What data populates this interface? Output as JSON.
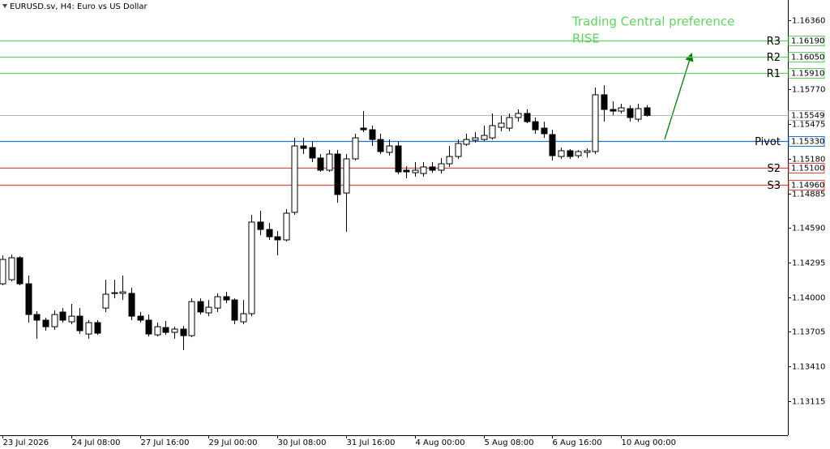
{
  "chart_data": {
    "type": "candlestick",
    "title": "EURUSD.sv, H4:  Euro vs US Dollar",
    "categories": [
      "23 Jul 2026",
      null,
      null,
      null,
      null,
      null,
      null,
      null,
      "24 Jul 08:00",
      null,
      null,
      null,
      null,
      null,
      null,
      null,
      "27 Jul 16:00",
      null,
      null,
      null,
      null,
      null,
      null,
      null,
      "29 Jul 00:00",
      null,
      null,
      null,
      null,
      null,
      null,
      null,
      "30 Jul 08:00",
      null,
      null,
      null,
      null,
      null,
      null,
      null,
      "31 Jul 16:00",
      null,
      null,
      null,
      null,
      null,
      null,
      null,
      "4 Aug 00:00",
      null,
      null,
      null,
      null,
      null,
      null,
      null,
      "5 Aug 08:00",
      null,
      null,
      null,
      null,
      null,
      null,
      null,
      "6 Aug 16:00",
      null,
      null,
      null,
      null,
      null,
      null,
      null,
      "10 Aug 00:00",
      null,
      null,
      null
    ],
    "open": [
      1.14114,
      1.14149,
      1.14336,
      1.14114,
      1.13852,
      1.13804,
      1.13748,
      1.13873,
      1.1379,
      1.13838,
      1.13686,
      1.13783,
      1.13907,
      1.14038,
      1.14032,
      1.14032,
      1.13838,
      1.13804,
      1.13679,
      1.13741,
      1.137,
      1.13728,
      1.13672,
      1.13962,
      1.13866,
      1.13907,
      1.14004,
      1.13976,
      1.1379,
      1.13859,
      1.1464,
      1.14577,
      1.14515,
      1.14488,
      1.14723,
      1.15289,
      1.15275,
      1.15186,
      1.15082,
      1.1522,
      1.14888,
      1.15179,
      1.15441,
      1.15427,
      1.15344,
      1.15234,
      1.15289,
      1.15082,
      1.15061,
      1.15054,
      1.1511,
      1.15082,
      1.15137,
      1.15199,
      1.15303,
      1.15338,
      1.15344,
      1.15358,
      1.15448,
      1.15441,
      1.15531,
      1.15566,
      1.15496,
      1.15441,
      1.15386,
      1.15199,
      1.15248,
      1.15206,
      1.15234,
      1.15241,
      1.15725,
      1.156,
      1.15586,
      1.15607,
      1.15517,
      1.15614
    ],
    "high": [
      1.14356,
      1.14363,
      1.14349,
      1.14184,
      1.1388,
      1.13824,
      1.13886,
      1.13907,
      1.13942,
      1.13907,
      1.13804,
      1.13804,
      1.14149,
      1.14149,
      1.14184,
      1.1408,
      1.13873,
      1.13852,
      1.13783,
      1.13797,
      1.13748,
      1.13755,
      1.1399,
      1.1399,
      1.13976,
      1.14032,
      1.14045,
      1.1399,
      1.13976,
      1.14702,
      1.14736,
      1.14633,
      1.14564,
      1.1475,
      1.15358,
      1.15358,
      1.15324,
      1.1522,
      1.15255,
      1.15255,
      1.1522,
      1.15393,
      1.15586,
      1.15462,
      1.15393,
      1.15344,
      1.15324,
      1.15116,
      1.15151,
      1.15151,
      1.15151,
      1.15186,
      1.15289,
      1.15344,
      1.15393,
      1.15407,
      1.15462,
      1.15566,
      1.15545,
      1.15566,
      1.156,
      1.156,
      1.15531,
      1.15496,
      1.15427,
      1.15275,
      1.15262,
      1.15255,
      1.15268,
      1.15787,
      1.15807,
      1.15669,
      1.15649,
      1.15635,
      1.15649,
      1.15635
    ],
    "low": [
      1.14101,
      1.14135,
      1.14101,
      1.13783,
      1.13645,
      1.13714,
      1.13721,
      1.13783,
      1.13769,
      1.13686,
      1.13645,
      1.13679,
      1.13873,
      1.1399,
      1.13976,
      1.13804,
      1.13783,
      1.13665,
      1.13665,
      1.13679,
      1.13645,
      1.13548,
      1.13658,
      1.13852,
      1.13838,
      1.13873,
      1.13949,
      1.13769,
      1.13769,
      1.13838,
      1.14529,
      1.14488,
      1.14356,
      1.14474,
      1.14702,
      1.1522,
      1.15151,
      1.15068,
      1.15068,
      1.14805,
      1.14557,
      1.15165,
      1.15407,
      1.15289,
      1.1522,
      1.15206,
      1.15047,
      1.15013,
      1.15027,
      1.15027,
      1.15061,
      1.15054,
      1.1511,
      1.15179,
      1.15289,
      1.15317,
      1.15331,
      1.15344,
      1.15414,
      1.15414,
      1.15496,
      1.15483,
      1.15393,
      1.15358,
      1.15165,
      1.15179,
      1.15179,
      1.15186,
      1.15192,
      1.1522,
      1.15496,
      1.15552,
      1.15566,
      1.15496,
      1.15496,
      1.15538
    ],
    "close": [
      1.14322,
      1.14336,
      1.14114,
      1.13852,
      1.13804,
      1.13748,
      1.13852,
      1.13804,
      1.13838,
      1.13714,
      1.13783,
      1.13693,
      1.14025,
      1.14032,
      1.14045,
      1.13838,
      1.13804,
      1.13686,
      1.13748,
      1.137,
      1.13728,
      1.13672,
      1.13962,
      1.13873,
      1.13914,
      1.14004,
      1.13976,
      1.13804,
      1.13859,
      1.1464,
      1.14577,
      1.14515,
      1.14488,
      1.14716,
      1.15289,
      1.15268,
      1.15186,
      1.15082,
      1.1522,
      1.14875,
      1.15179,
      1.15358,
      1.15427,
      1.15344,
      1.15241,
      1.15289,
      1.15068,
      1.15068,
      1.15082,
      1.1511,
      1.15082,
      1.15137,
      1.15199,
      1.1531,
      1.15344,
      1.15358,
      1.15379,
      1.15462,
      1.15483,
      1.15531,
      1.15566,
      1.15496,
      1.15427,
      1.15393,
      1.15206,
      1.15248,
      1.15199,
      1.15241,
      1.15248,
      1.15725,
      1.156,
      1.15586,
      1.15614,
      1.15531,
      1.15607,
      1.15549
    ],
    "bull_color": "#ffffff",
    "bear_color": "#000000",
    "ylim": [
      1.12823,
      1.16533
    ],
    "yticks": [
      {
        "value": 1.1636,
        "label": "1.16360"
      },
      1.16065,
      {
        "value": 1.1577,
        "label": "1.15770"
      },
      1.15475,
      {
        "value": 1.1518,
        "label": "1.15180"
      },
      1.14885,
      {
        "value": 1.1459,
        "label": "1.14590"
      },
      1.14295,
      {
        "value": 1.14,
        "label": "1.14000"
      },
      1.13705,
      {
        "value": 1.1341,
        "label": "1.13410"
      },
      1.13115
    ],
    "levels": [
      {
        "name": "R3",
        "value": 1.1619,
        "value_label": "1.16190",
        "color": "#5fd35f"
      },
      {
        "name": "R2",
        "value": 1.1605,
        "value_label": "1.16050",
        "color": "#5fd35f"
      },
      {
        "name": "R1",
        "value": 1.1591,
        "value_label": "1.15910",
        "color": "#5fd35f"
      },
      {
        "name": "Pivot",
        "value": 1.1533,
        "value_label": "1.15330",
        "color": "#1e73d8"
      },
      {
        "name": "S2",
        "value": 1.151,
        "value_label": "1.15100",
        "color": "#e8473e"
      },
      {
        "name": "S3",
        "value": 1.1496,
        "value_label": "1.14960",
        "color": "#e8473e"
      }
    ],
    "current_price": {
      "value": 1.15549,
      "label": "1.15549",
      "color": "#b8b8b8"
    },
    "annotations": [
      "Trading Central preference",
      "RISE"
    ]
  }
}
